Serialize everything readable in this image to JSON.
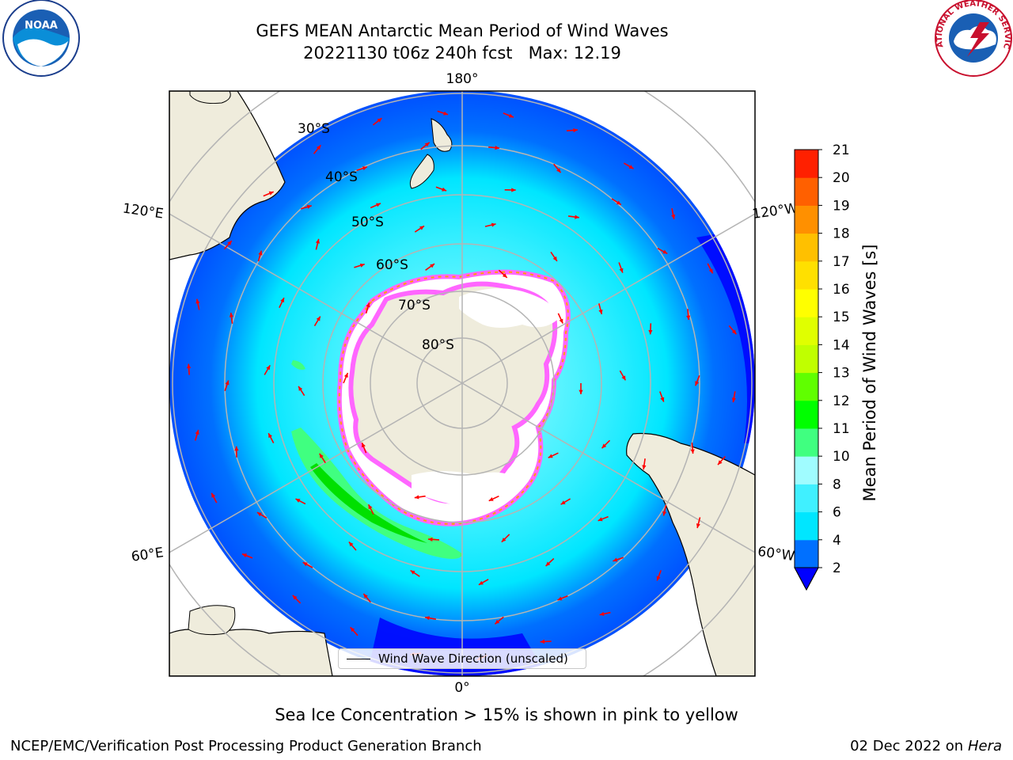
{
  "title": {
    "line1": "GEFS MEAN Antarctic Mean Period of Wind Waves",
    "line2": "20221130 t06z 240h fcst   Max: 12.19"
  },
  "logos": {
    "noaa": "NOAA",
    "nws": "NATIONAL WEATHER SERVICE"
  },
  "map": {
    "longitude_labels": [
      "180°",
      "120°E",
      "120°W",
      "60°E",
      "60°W",
      "0°"
    ],
    "latitude_labels": [
      "30°S",
      "40°S",
      "50°S",
      "60°S",
      "70°S",
      "80°S"
    ],
    "colors": {
      "land": "#efecdc",
      "ice": "#ffffff",
      "ice_edge_pink": "#ff66ff",
      "ice_edge_orange": "#ffa000",
      "arrows": "#ff0000"
    }
  },
  "legend": {
    "label": "Wind Wave Direction (unscaled)"
  },
  "colorbar": {
    "label": "Mean Period of Wind Waves [s]",
    "ticks": [
      "2",
      "4",
      "6",
      "8",
      "10",
      "11",
      "12",
      "13",
      "14",
      "15",
      "16",
      "17",
      "18",
      "19",
      "20",
      "21"
    ],
    "colors": [
      "#0070ff",
      "#00e6ff",
      "#40f0ff",
      "#a0fcff",
      "#40ff80",
      "#00ff00",
      "#60ff00",
      "#c0ff00",
      "#e0ff00",
      "#ffff00",
      "#ffe000",
      "#ffc000",
      "#ff9000",
      "#ff6000",
      "#ff2000"
    ],
    "extend_color": "#0000ff"
  },
  "caption": "Sea Ice Concentration > 15% is shown in pink to yellow",
  "footer": {
    "left": "NCEP/EMC/Verification Post Processing Product Generation Branch",
    "date": "02 Dec 2022 on",
    "host": "Hera"
  }
}
